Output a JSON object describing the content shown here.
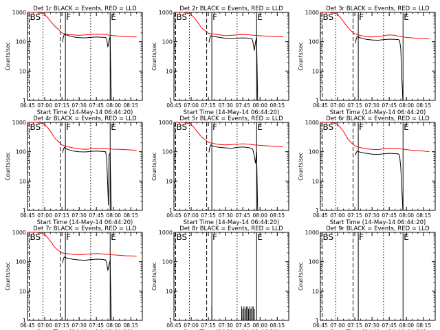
{
  "chart_data": {
    "type": "line",
    "grid": false,
    "x_ticks": [
      "06:45",
      "07:00",
      "07:15",
      "07:30",
      "07:45",
      "08:00",
      "08:15"
    ],
    "x_ticks_min": [
      0,
      15,
      30,
      45,
      60,
      75,
      90
    ],
    "x_range_min": [
      0,
      100
    ],
    "y_ticks": [
      "1",
      "10",
      "100",
      "1000"
    ],
    "y_tick_values": [
      1,
      10,
      100,
      1000
    ],
    "y_range": [
      1,
      1000
    ],
    "y_scale": "log",
    "ylabel": "Counts/sec",
    "xlabel": "Start Time (14-May-14 06:44:20)",
    "colors": {
      "events": "#000000",
      "lld": "#ff0000"
    },
    "markers": [
      {
        "label": "BS",
        "x_min": 1.5,
        "style": "dashed"
      },
      {
        "label": "",
        "x_min": 13.5,
        "style": "dotted"
      },
      {
        "label": "",
        "x_min": 28.5,
        "style": "dashed"
      },
      {
        "label": "F",
        "x_min": 33.0,
        "style": "solid"
      },
      {
        "label": "",
        "x_min": 55.0,
        "style": "dotted"
      },
      {
        "label": "E",
        "x_min": 72.0,
        "style": "solid"
      }
    ],
    "panels": [
      {
        "title": "Det 1r BLACK = Events, RED = LLD",
        "events": [
          [
            30.5,
            95
          ],
          [
            31,
            130
          ],
          [
            32,
            180
          ],
          [
            34,
            170
          ],
          [
            37,
            155
          ],
          [
            40,
            145
          ],
          [
            45,
            138
          ],
          [
            50,
            135
          ],
          [
            55,
            140
          ],
          [
            60,
            145
          ],
          [
            65,
            142
          ],
          [
            68,
            140
          ],
          [
            69,
            120
          ],
          [
            70,
            65
          ],
          [
            71,
            110
          ],
          [
            72,
            150
          ],
          [
            73,
            0
          ]
        ],
        "lld": [
          [
            0,
            1000
          ],
          [
            8,
            1000
          ],
          [
            14,
            900
          ],
          [
            17,
            700
          ],
          [
            20,
            500
          ],
          [
            24,
            330
          ],
          [
            27,
            260
          ],
          [
            30,
            200
          ],
          [
            33,
            180
          ],
          [
            36,
            175
          ],
          [
            40,
            170
          ],
          [
            45,
            165
          ],
          [
            50,
            170
          ],
          [
            55,
            175
          ],
          [
            60,
            180
          ],
          [
            65,
            178
          ],
          [
            68,
            175
          ],
          [
            72,
            165
          ],
          [
            76,
            160
          ],
          [
            80,
            155
          ],
          [
            85,
            150
          ],
          [
            90,
            148
          ],
          [
            95,
            145
          ]
        ]
      },
      {
        "title": "Det 2r BLACK = Events, RED = LLD",
        "events": [
          [
            30.5,
            95
          ],
          [
            31,
            120
          ],
          [
            32,
            160
          ],
          [
            35,
            150
          ],
          [
            40,
            140
          ],
          [
            45,
            130
          ],
          [
            50,
            128
          ],
          [
            55,
            132
          ],
          [
            60,
            135
          ],
          [
            65,
            132
          ],
          [
            68,
            128
          ],
          [
            69,
            90
          ],
          [
            70,
            50
          ],
          [
            71,
            95
          ],
          [
            72,
            140
          ],
          [
            73,
            0
          ]
        ],
        "lld": [
          [
            0,
            1000
          ],
          [
            8,
            1000
          ],
          [
            14,
            900
          ],
          [
            17,
            700
          ],
          [
            20,
            500
          ],
          [
            24,
            300
          ],
          [
            27,
            240
          ],
          [
            30,
            195
          ],
          [
            33,
            185
          ],
          [
            36,
            180
          ],
          [
            40,
            170
          ],
          [
            45,
            160
          ],
          [
            50,
            165
          ],
          [
            55,
            170
          ],
          [
            60,
            175
          ],
          [
            65,
            172
          ],
          [
            70,
            165
          ],
          [
            75,
            160
          ],
          [
            80,
            155
          ],
          [
            85,
            152
          ],
          [
            90,
            150
          ],
          [
            95,
            148
          ]
        ]
      },
      {
        "title": "Det 3r BLACK = Events, RED = LLD",
        "events": [
          [
            30.5,
            90
          ],
          [
            31,
            115
          ],
          [
            32,
            150
          ],
          [
            35,
            135
          ],
          [
            40,
            120
          ],
          [
            45,
            115
          ],
          [
            50,
            112
          ],
          [
            55,
            118
          ],
          [
            60,
            122
          ],
          [
            65,
            120
          ],
          [
            68,
            118
          ],
          [
            69,
            110
          ],
          [
            70,
            60
          ],
          [
            71,
            5
          ],
          [
            71.5,
            2
          ],
          [
            72,
            0
          ]
        ],
        "lld": [
          [
            0,
            1000
          ],
          [
            8,
            1000
          ],
          [
            14,
            900
          ],
          [
            17,
            700
          ],
          [
            20,
            500
          ],
          [
            24,
            300
          ],
          [
            27,
            230
          ],
          [
            30,
            185
          ],
          [
            33,
            170
          ],
          [
            36,
            160
          ],
          [
            40,
            150
          ],
          [
            45,
            145
          ],
          [
            50,
            150
          ],
          [
            55,
            160
          ],
          [
            60,
            170
          ],
          [
            65,
            165
          ],
          [
            70,
            150
          ],
          [
            75,
            140
          ],
          [
            80,
            135
          ],
          [
            85,
            130
          ],
          [
            90,
            128
          ],
          [
            95,
            125
          ]
        ]
      },
      {
        "title": "Det 4r BLACK = Events, RED = LLD",
        "events": [
          [
            30.5,
            90
          ],
          [
            31,
            110
          ],
          [
            32,
            140
          ],
          [
            35,
            120
          ],
          [
            40,
            105
          ],
          [
            45,
            100
          ],
          [
            50,
            98
          ],
          [
            55,
            102
          ],
          [
            60,
            105
          ],
          [
            65,
            102
          ],
          [
            68,
            100
          ],
          [
            69,
            60
          ],
          [
            70,
            5
          ],
          [
            70.5,
            1.5
          ],
          [
            71,
            80
          ],
          [
            72,
            90
          ],
          [
            73,
            0
          ]
        ],
        "lld": [
          [
            0,
            1000
          ],
          [
            8,
            1000
          ],
          [
            14,
            900
          ],
          [
            17,
            700
          ],
          [
            20,
            500
          ],
          [
            24,
            280
          ],
          [
            27,
            220
          ],
          [
            30,
            170
          ],
          [
            33,
            155
          ],
          [
            36,
            145
          ],
          [
            40,
            135
          ],
          [
            45,
            125
          ],
          [
            50,
            120
          ],
          [
            55,
            125
          ],
          [
            60,
            130
          ],
          [
            65,
            128
          ],
          [
            70,
            125
          ],
          [
            75,
            122
          ],
          [
            80,
            120
          ],
          [
            85,
            118
          ],
          [
            90,
            115
          ],
          [
            95,
            112
          ]
        ]
      },
      {
        "title": "Det 5r BLACK = Events, RED = LLD",
        "events": [
          [
            30.5,
            95
          ],
          [
            31,
            130
          ],
          [
            32,
            170
          ],
          [
            35,
            150
          ],
          [
            40,
            140
          ],
          [
            45,
            135
          ],
          [
            50,
            130
          ],
          [
            55,
            140
          ],
          [
            60,
            145
          ],
          [
            65,
            138
          ],
          [
            68,
            130
          ],
          [
            69,
            110
          ],
          [
            70,
            70
          ],
          [
            71,
            40
          ],
          [
            72,
            100
          ],
          [
            73,
            0
          ]
        ],
        "lld": [
          [
            0,
            1000
          ],
          [
            8,
            1000
          ],
          [
            14,
            900
          ],
          [
            17,
            700
          ],
          [
            20,
            500
          ],
          [
            24,
            320
          ],
          [
            27,
            260
          ],
          [
            30,
            210
          ],
          [
            33,
            195
          ],
          [
            36,
            185
          ],
          [
            40,
            175
          ],
          [
            45,
            170
          ],
          [
            50,
            175
          ],
          [
            55,
            180
          ],
          [
            60,
            185
          ],
          [
            65,
            180
          ],
          [
            70,
            170
          ],
          [
            75,
            165
          ],
          [
            80,
            160
          ],
          [
            85,
            155
          ],
          [
            90,
            150
          ],
          [
            95,
            148
          ]
        ]
      },
      {
        "title": "Det 6r BLACK = Events, RED = LLD",
        "events": [
          [
            30.5,
            75
          ],
          [
            31,
            90
          ],
          [
            32,
            105
          ],
          [
            35,
            95
          ],
          [
            40,
            88
          ],
          [
            45,
            82
          ],
          [
            50,
            80
          ],
          [
            55,
            85
          ],
          [
            60,
            88
          ],
          [
            65,
            86
          ],
          [
            68,
            84
          ],
          [
            69,
            75
          ],
          [
            70,
            30
          ],
          [
            71,
            5
          ],
          [
            72,
            0
          ]
        ],
        "lld": [
          [
            0,
            1000
          ],
          [
            8,
            1000
          ],
          [
            14,
            900
          ],
          [
            17,
            700
          ],
          [
            20,
            500
          ],
          [
            24,
            270
          ],
          [
            27,
            200
          ],
          [
            30,
            160
          ],
          [
            33,
            145
          ],
          [
            36,
            135
          ],
          [
            40,
            125
          ],
          [
            45,
            120
          ],
          [
            50,
            118
          ],
          [
            55,
            125
          ],
          [
            60,
            130
          ],
          [
            65,
            128
          ],
          [
            70,
            125
          ],
          [
            75,
            118
          ],
          [
            80,
            112
          ],
          [
            85,
            108
          ],
          [
            90,
            105
          ],
          [
            95,
            100
          ]
        ]
      },
      {
        "title": "Det 7r BLACK = Events, RED = LLD",
        "events": [
          [
            30.5,
            90
          ],
          [
            31,
            115
          ],
          [
            32,
            145
          ],
          [
            35,
            130
          ],
          [
            40,
            120
          ],
          [
            45,
            115
          ],
          [
            50,
            112
          ],
          [
            55,
            118
          ],
          [
            60,
            122
          ],
          [
            65,
            120
          ],
          [
            68,
            115
          ],
          [
            69,
            90
          ],
          [
            70,
            50
          ],
          [
            71,
            80
          ],
          [
            72,
            110
          ],
          [
            73,
            0
          ]
        ],
        "lld": [
          [
            0,
            1000
          ],
          [
            8,
            1000
          ],
          [
            14,
            900
          ],
          [
            17,
            700
          ],
          [
            20,
            500
          ],
          [
            24,
            300
          ],
          [
            27,
            240
          ],
          [
            30,
            200
          ],
          [
            33,
            190
          ],
          [
            36,
            185
          ],
          [
            40,
            178
          ],
          [
            45,
            172
          ],
          [
            50,
            178
          ],
          [
            55,
            185
          ],
          [
            60,
            190
          ],
          [
            65,
            185
          ],
          [
            70,
            178
          ],
          [
            75,
            170
          ],
          [
            80,
            165
          ],
          [
            85,
            160
          ],
          [
            90,
            158
          ],
          [
            95,
            155
          ]
        ]
      },
      {
        "title": "Det 8r BLACK = Events, RED = LLD",
        "events": [],
        "lld": [],
        "spikes_min": [
          33,
          59,
          60,
          61,
          62,
          63,
          64,
          65,
          66,
          67,
          68,
          69,
          70
        ],
        "spike_values": [
          3,
          3,
          2.5,
          3,
          2.5,
          3,
          3,
          2.5,
          3,
          2.5,
          3,
          3,
          2.5
        ]
      },
      {
        "title": "Det 9r BLACK = Events, RED = LLD",
        "events": [],
        "lld": []
      }
    ]
  }
}
